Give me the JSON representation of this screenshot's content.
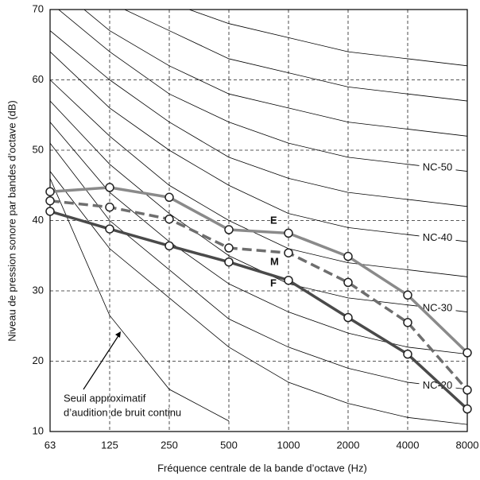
{
  "chart_data": {
    "type": "line",
    "x_label": "Fréquence centrale de la bande d’octave (Hz)",
    "y_label": "Niveau de pression sonore par bandes d’octave (dB)",
    "categories": [
      "63",
      "125",
      "250",
      "500",
      "1000",
      "2000",
      "4000",
      "8000"
    ],
    "ylim": [
      10,
      70
    ],
    "yticks": [
      10,
      20,
      30,
      40,
      50,
      60,
      70
    ],
    "grid": true,
    "series": [
      {
        "name": "E",
        "color": "#8a8a8a",
        "dash": false,
        "values": [
          44.1,
          44.7,
          43.3,
          38.7,
          38.2,
          34.9,
          29.4,
          21.2
        ]
      },
      {
        "name": "M",
        "color": "#6e6e6e",
        "dash": true,
        "values": [
          42.8,
          41.9,
          40.2,
          36.1,
          35.4,
          31.2,
          25.5,
          15.9
        ]
      },
      {
        "name": "F",
        "color": "#4a4a4a",
        "dash": false,
        "values": [
          41.3,
          38.8,
          36.4,
          34.1,
          31.5,
          26.2,
          21.0,
          13.2
        ]
      }
    ],
    "nc_curves": [
      {
        "values": [
          47,
          36,
          29,
          22,
          17,
          14,
          12,
          11
        ]
      },
      {
        "label": "NC-20",
        "values": [
          51,
          40,
          33,
          26,
          22,
          19,
          17,
          16
        ]
      },
      {
        "values": [
          54,
          44,
          37,
          31,
          27,
          24,
          22,
          21
        ]
      },
      {
        "label": "NC-30",
        "values": [
          57,
          48,
          41,
          35,
          31,
          29,
          28,
          27
        ]
      },
      {
        "values": [
          60,
          52,
          45,
          40,
          36,
          34,
          33,
          32
        ]
      },
      {
        "label": "NC-40",
        "values": [
          64,
          56,
          50,
          45,
          41,
          39,
          38,
          37
        ]
      },
      {
        "values": [
          67,
          60,
          54,
          49,
          46,
          44,
          43,
          42
        ]
      },
      {
        "label": "NC-50",
        "values": [
          71,
          64,
          58,
          54,
          51,
          49,
          48,
          47
        ]
      },
      {
        "values": [
          74,
          67,
          62,
          58,
          56,
          54,
          53,
          52
        ]
      },
      {
        "values": [
          77,
          71,
          67,
          63,
          61,
          59,
          58,
          57
        ]
      },
      {
        "values": [
          80,
          75,
          71,
          68,
          66,
          64,
          63,
          62
        ]
      }
    ],
    "threshold": {
      "values": [
        46,
        26.5,
        16,
        11.5
      ]
    },
    "annotation": [
      "Seuil approximatif",
      "d’audition de bruit continu"
    ]
  }
}
